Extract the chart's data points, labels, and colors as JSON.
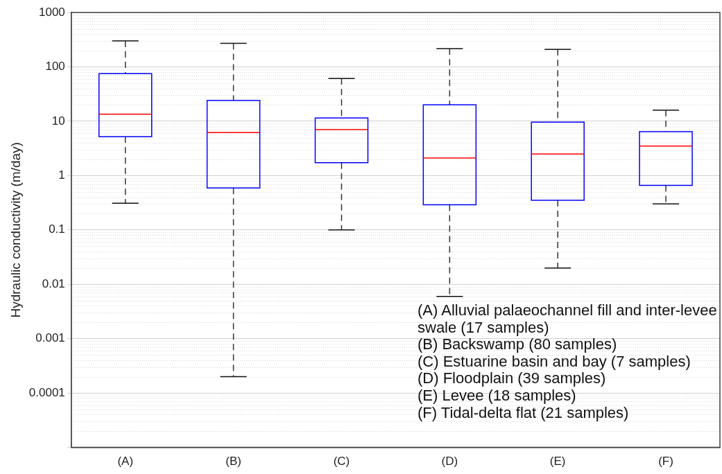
{
  "chart_data": {
    "type": "box",
    "ylabel": "Hydraulic conductivity (m/day)",
    "categories": [
      "(A)",
      "(B)",
      "(C)",
      "(D)",
      "(E)",
      "(F)"
    ],
    "series": [
      {
        "color": "#0000ff",
        "boxes": [
          {
            "low": 0.31,
            "q1": 5.2,
            "median": 13.5,
            "q3": 75,
            "high": 300
          },
          {
            "low": 0.0002,
            "q1": 0.59,
            "median": 6.2,
            "q3": 24,
            "high": 270
          },
          {
            "low": 0.1,
            "q1": 1.73,
            "median": 7,
            "q3": 11.5,
            "high": 61
          },
          {
            "low": 0.006,
            "q1": 0.29,
            "median": 2.1,
            "q3": 20,
            "high": 215
          },
          {
            "low": 0.02,
            "q1": 0.35,
            "median": 2.5,
            "q3": 9.6,
            "high": 210
          },
          {
            "low": 0.3,
            "q1": 0.66,
            "median": 3.5,
            "q3": 6.4,
            "high": 16
          }
        ]
      }
    ],
    "log": "y",
    "ylim": [
      1e-05,
      1000
    ],
    "yticks": [
      {
        "value": 1e-05,
        "label": null
      },
      0.0001,
      0.001,
      0.01,
      0.1,
      1,
      10,
      100,
      1000
    ],
    "grid": true,
    "legend": false,
    "annotations": [
      "(A) Alluvial palaeochannel fill and inter-levee swale (17 samples)",
      "(B) Backswamp (80 samples)",
      "(C) Estuarine basin and bay (7 samples)",
      "(D) Floodplain (39 samples)",
      "(E) Levee (18 samples)",
      "(F) Tidal-delta flat (21 samples)"
    ]
  }
}
